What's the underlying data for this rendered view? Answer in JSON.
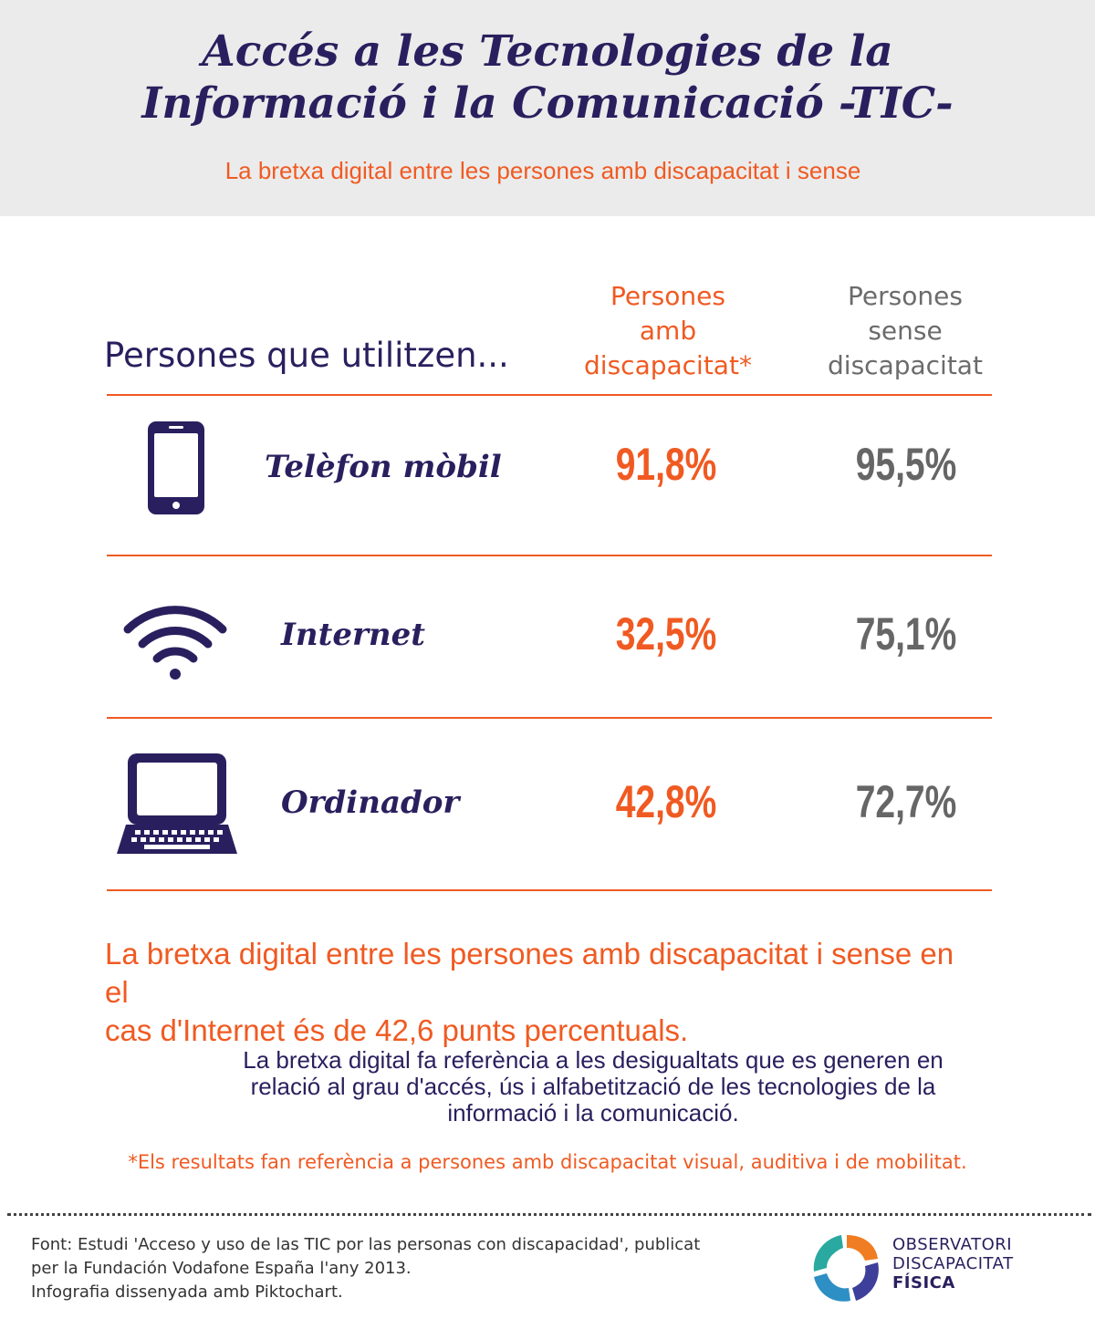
{
  "header": {
    "title_line1": "Accés a les Tecnologies de la",
    "title_line2": "Informació i la Comunicació -TIC-",
    "subtitle": "La bretxa digital entre les persones amb discapacitat i sense"
  },
  "colors": {
    "accent": "#f05a22",
    "navy": "#2a1f5e",
    "gray": "#666666",
    "header_bg": "#ebebeb"
  },
  "chart_data": {
    "type": "table",
    "row_header": "Persones que utilitzen...",
    "columns": [
      "Persones amb discapacitat*",
      "Persones sense discapacitat"
    ],
    "column_lines": [
      [
        "Persones",
        "amb",
        "discapacitat*"
      ],
      [
        "Persones",
        "sense",
        "discapacitat"
      ]
    ],
    "rows": [
      {
        "label": "Telèfon mòbil",
        "icon": "mobile-phone-icon",
        "with_disability": "91,8%",
        "without_disability": "95,5%"
      },
      {
        "label": "Internet",
        "icon": "wifi-icon",
        "with_disability": "32,5%",
        "without_disability": "75,1%"
      },
      {
        "label": "Ordinador",
        "icon": "laptop-icon",
        "with_disability": "42,8%",
        "without_disability": "72,7%"
      }
    ],
    "values_with_disability": [
      91.8,
      32.5,
      42.8
    ],
    "values_without_disability": [
      95.5,
      75.1,
      72.7
    ]
  },
  "gap_statement": {
    "line1": "La bretxa digital entre les persones amb discapacitat i sense en el",
    "line2": "cas d'Internet és de 42,6 punts percentuals."
  },
  "definition": {
    "line1": "La bretxa digital fa referència a les desigualtats que es generen en",
    "line2": "relació al grau d'accés, ús i alfabetització de les tecnologies de la",
    "line3": "informació i la comunicació."
  },
  "footnote": "*Els resultats fan referència a persones amb discapacitat visual, auditiva i de mobilitat.",
  "source": {
    "line1": "Font: Estudi 'Acceso y uso de las TIC por las personas con discapacidad', publicat",
    "line2": "per la Fundación Vodafone España l'any 2013.",
    "line3": "Infografia dissenyada amb Piktochart."
  },
  "logo": {
    "line1": "OBSERVATORI",
    "line2": "DISCAPACITAT",
    "line3": "FÍSICA"
  }
}
